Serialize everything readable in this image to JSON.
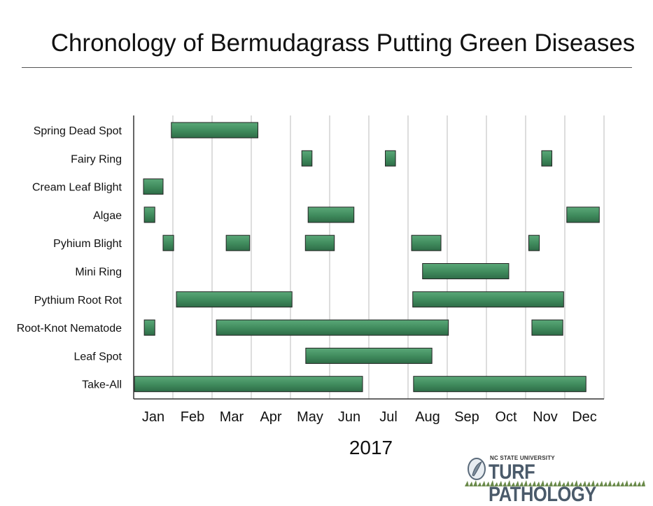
{
  "title": "Chronology of Bermudagrass Putting Green Diseases",
  "logo": {
    "top_text": "NC STATE UNIVERSITY",
    "main_text": "TURF PATHOLOGY"
  },
  "colors": {
    "bar_fill": "#3f8a5c",
    "bar_stroke": "#222222",
    "grid": "#bbbbbb",
    "axis": "#333333"
  },
  "chart_data": {
    "type": "bar",
    "orientation": "horizontal-range",
    "title": "Chronology of Bermudagrass Putting Green Diseases",
    "xlabel": "2017",
    "ylabel": "",
    "x_unit": "month index (0 = start of Jan, 12 = end of Dec)",
    "xlim": [
      0,
      12
    ],
    "grid": "vertical",
    "months": [
      "Jan",
      "Feb",
      "Mar",
      "Apr",
      "May",
      "Jun",
      "Jul",
      "Aug",
      "Sep",
      "Oct",
      "Nov",
      "Dec"
    ],
    "categories": [
      "Spring Dead Spot",
      "Fairy Ring",
      "Cream Leaf Blight",
      "Algae",
      "Pyhium Blight",
      "Mini Ring",
      "Pythium Root Rot",
      "Root-Knot Nematode",
      "Leaf Spot",
      "Take-All"
    ],
    "series": [
      {
        "category": "Spring Dead Spot",
        "ranges": [
          [
            0.96,
            3.17
          ]
        ]
      },
      {
        "category": "Fairy Ring",
        "ranges": [
          [
            4.29,
            4.55
          ],
          [
            6.42,
            6.68
          ],
          [
            10.41,
            10.67
          ]
        ]
      },
      {
        "category": "Cream Leaf Blight",
        "ranges": [
          [
            0.25,
            0.75
          ]
        ]
      },
      {
        "category": "Algae",
        "ranges": [
          [
            0.27,
            0.54
          ],
          [
            4.45,
            5.62
          ],
          [
            11.05,
            11.88
          ]
        ]
      },
      {
        "category": "Pyhium Blight",
        "ranges": [
          [
            0.75,
            1.02
          ],
          [
            2.36,
            2.96
          ],
          [
            4.38,
            5.12
          ],
          [
            7.09,
            7.84
          ],
          [
            10.08,
            10.35
          ]
        ]
      },
      {
        "category": "Mini Ring",
        "ranges": [
          [
            7.37,
            9.57
          ]
        ]
      },
      {
        "category": "Pythium Root Rot",
        "ranges": [
          [
            1.09,
            4.04
          ],
          [
            7.12,
            10.97
          ]
        ]
      },
      {
        "category": "Root-Knot Nematode",
        "ranges": [
          [
            0.27,
            0.54
          ],
          [
            2.11,
            8.03
          ],
          [
            10.16,
            10.95
          ]
        ]
      },
      {
        "category": "Leaf Spot",
        "ranges": [
          [
            4.39,
            7.61
          ]
        ]
      },
      {
        "category": "Take-All",
        "ranges": [
          [
            0.02,
            5.84
          ],
          [
            7.14,
            11.54
          ]
        ]
      }
    ]
  }
}
